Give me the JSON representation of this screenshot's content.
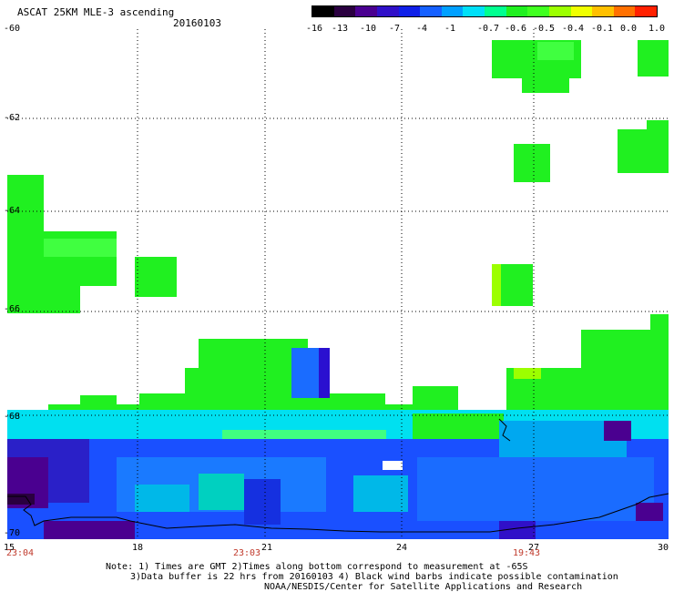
{
  "header": {
    "title": "ASCAT 25KM MLE-3 ascending",
    "date": "20160103"
  },
  "colorbar": {
    "labels": [
      "-16",
      "-13",
      "-10",
      "-7",
      "-4",
      "-1",
      "-0.7",
      "-0.6",
      "-0.5",
      "-0.4",
      "-0.1",
      "0.0",
      "1.0"
    ],
    "colors": [
      "#000000",
      "#2a0040",
      "#4a0090",
      "#3010c8",
      "#1020e8",
      "#1560ff",
      "#00a0ff",
      "#00e0f8",
      "#00ff90",
      "#20f020",
      "#40ff20",
      "#9cff00",
      "#f0ff00",
      "#ffc000",
      "#ff7000",
      "#ff2000"
    ]
  },
  "axes": {
    "y_ticks": [
      "-60",
      "-62",
      "-64",
      "-66",
      "-68",
      "-70"
    ],
    "x_ticks": [
      "15",
      "18",
      "21",
      "24",
      "27",
      "30"
    ],
    "time_labels": [
      "23:04",
      "23:03",
      "19:43"
    ]
  },
  "notes": {
    "line1": "Note: 1) Times are GMT 2)Times along bottom correspond to measurement at -65S",
    "line2": "3)Data buffer is 22 hrs from 20160103 4) Black wind barbs indicate possible contamination",
    "line3": "NOAA/NESDIS/Center for Satellite Applications and Research"
  },
  "palette": {
    "green": "#20f020",
    "light_green": "#40ff40",
    "cyan": "#00eaf0",
    "teal": "#00c8e0",
    "blue": "#1a50ff",
    "deep_blue": "#1030e8",
    "purple": "#3b10a0"
  }
}
